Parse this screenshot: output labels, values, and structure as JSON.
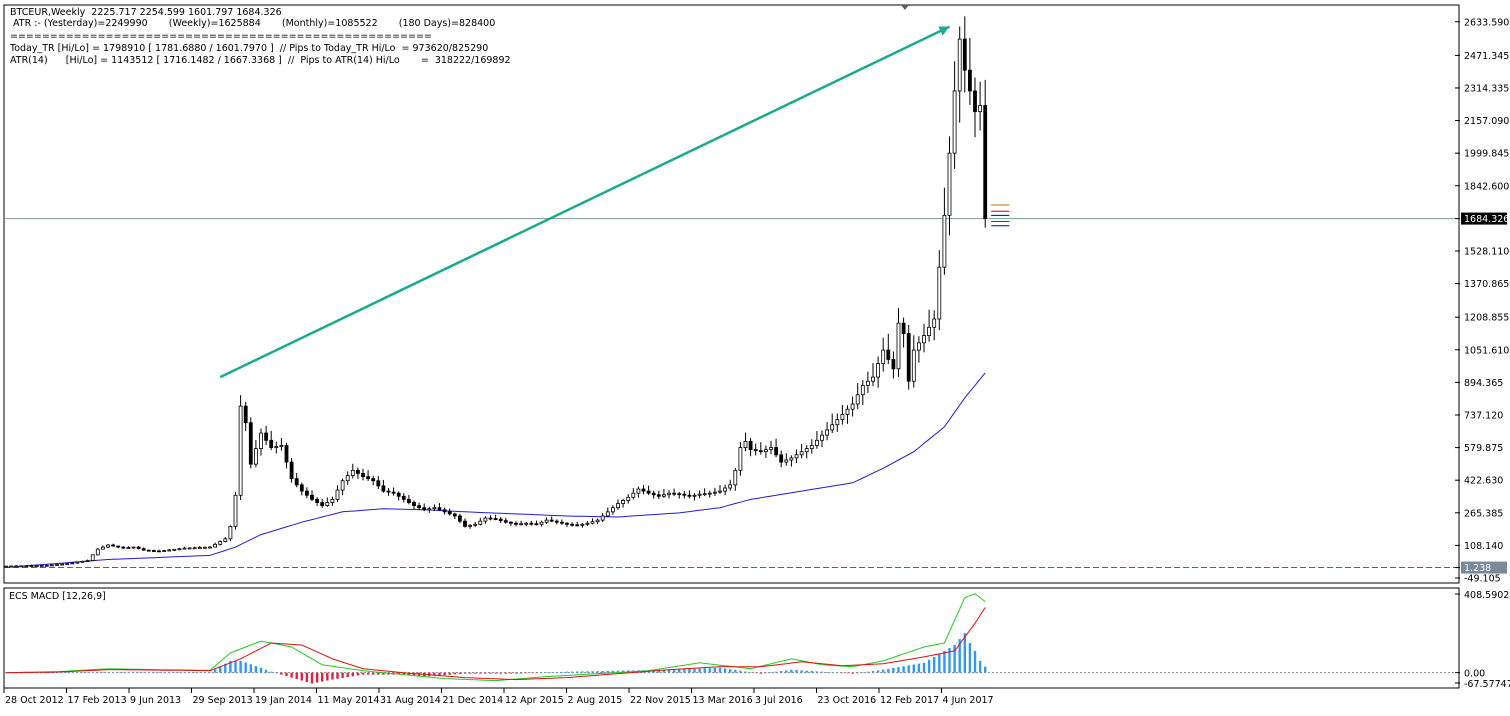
{
  "header": {
    "line1": "BTCEUR,Weekly  2225.717 2254.599 1601.797 1684.326",
    "line2": " ATR :- (Yesterday)=2249990       (Weekly)=1625884       (Monthly)=1085522       (180 Days)=828400",
    "line3": "=====================================================",
    "line4": "Today_TR [Hi/Lo] = 1798910 [ 1781.6880 / 1601.7970 ]  // Pips to Today_TR Hi/Lo  = 973620/825290",
    "line5": "ATR(14)      [Hi/Lo] = 1143512 [ 1716.1482 / 1667.3368 ]  //  Pips to ATR(14) Hi/Lo       =  318222/169892"
  },
  "indicator_label": "ECS MACD [12,26,9]",
  "colors": {
    "background": "#ffffff",
    "candle": "#000000",
    "ma_line": "#1f1fd0",
    "trend_arrow": "#1aaa8c",
    "macd_line": "#22cc22",
    "signal_line": "#dd1111",
    "hist_pos": "#3399ee",
    "hist_neg": "#dd2244",
    "current_price_line": "#7a9a9a"
  },
  "chart_data": {
    "type": "candlestick",
    "title": "BTCEUR,Weekly",
    "ylim": [
      -49.105,
      2700
    ],
    "y_ticks": [
      "2633.590",
      "2471.345",
      "2314.335",
      "2157.090",
      "1999.845",
      "1842.600",
      "1684.326",
      "1528.110",
      "1370.865",
      "1208.855",
      "1051.610",
      "894.365",
      "737.120",
      "579.875",
      "422.630",
      "265.385",
      "108.140",
      "1.238",
      "-49.105"
    ],
    "x_ticks": [
      "28 Oct 2012",
      "17 Feb 2013",
      "9 Jun 2013",
      "29 Sep 2013",
      "19 Jan 2014",
      "11 May 2014",
      "31 Aug 2014",
      "21 Dec 2014",
      "12 Apr 2015",
      "2 Aug 2015",
      "22 Nov 2015",
      "13 Mar 2016",
      "3 Jul 2016",
      "23 Oct 2016",
      "12 Feb 2017",
      "4 Jun 2017"
    ],
    "current_price": 1684.326,
    "zero_line": 1.238,
    "weekly_close_anchors": [
      [
        0,
        8
      ],
      [
        8,
        12
      ],
      [
        12,
        20
      ],
      [
        16,
        35
      ],
      [
        18,
        90
      ],
      [
        20,
        110
      ],
      [
        23,
        95
      ],
      [
        25,
        100
      ],
      [
        27,
        85
      ],
      [
        30,
        80
      ],
      [
        35,
        95
      ],
      [
        40,
        100
      ],
      [
        43,
        140
      ],
      [
        44,
        200
      ],
      [
        45,
        350
      ],
      [
        46,
        780
      ],
      [
        47,
        700
      ],
      [
        48,
        500
      ],
      [
        50,
        650
      ],
      [
        52,
        580
      ],
      [
        54,
        590
      ],
      [
        56,
        430
      ],
      [
        58,
        370
      ],
      [
        60,
        330
      ],
      [
        62,
        300
      ],
      [
        64,
        330
      ],
      [
        66,
        420
      ],
      [
        68,
        470
      ],
      [
        70,
        440
      ],
      [
        72,
        420
      ],
      [
        74,
        370
      ],
      [
        76,
        360
      ],
      [
        78,
        330
      ],
      [
        80,
        300
      ],
      [
        82,
        280
      ],
      [
        84,
        290
      ],
      [
        86,
        270
      ],
      [
        88,
        250
      ],
      [
        90,
        200
      ],
      [
        92,
        210
      ],
      [
        94,
        240
      ],
      [
        96,
        235
      ],
      [
        98,
        220
      ],
      [
        100,
        210
      ],
      [
        102,
        215
      ],
      [
        104,
        210
      ],
      [
        106,
        230
      ],
      [
        108,
        220
      ],
      [
        110,
        210
      ],
      [
        112,
        205
      ],
      [
        114,
        215
      ],
      [
        116,
        230
      ],
      [
        118,
        270
      ],
      [
        120,
        310
      ],
      [
        122,
        340
      ],
      [
        124,
        380
      ],
      [
        126,
        360
      ],
      [
        128,
        345
      ],
      [
        130,
        360
      ],
      [
        132,
        355
      ],
      [
        134,
        345
      ],
      [
        136,
        355
      ],
      [
        138,
        360
      ],
      [
        140,
        370
      ],
      [
        142,
        400
      ],
      [
        143,
        470
      ],
      [
        144,
        580
      ],
      [
        145,
        610
      ],
      [
        146,
        570
      ],
      [
        148,
        560
      ],
      [
        150,
        580
      ],
      [
        152,
        510
      ],
      [
        154,
        530
      ],
      [
        156,
        560
      ],
      [
        158,
        590
      ],
      [
        160,
        640
      ],
      [
        162,
        690
      ],
      [
        164,
        740
      ],
      [
        166,
        790
      ],
      [
        168,
        880
      ],
      [
        170,
        920
      ],
      [
        172,
        1050
      ],
      [
        174,
        960
      ],
      [
        175,
        1180
      ],
      [
        176,
        1130
      ],
      [
        177,
        900
      ],
      [
        178,
        1050
      ],
      [
        180,
        1120
      ],
      [
        182,
        1200
      ],
      [
        183,
        1450
      ],
      [
        184,
        1700
      ],
      [
        185,
        2000
      ],
      [
        186,
        2300
      ],
      [
        187,
        2550
      ],
      [
        188,
        2400
      ],
      [
        189,
        2300
      ],
      [
        190,
        2200
      ],
      [
        191,
        2230
      ],
      [
        192,
        1684
      ]
    ],
    "ma_anchors": [
      [
        0,
        2
      ],
      [
        20,
        40
      ],
      [
        40,
        60
      ],
      [
        45,
        100
      ],
      [
        50,
        160
      ],
      [
        58,
        220
      ],
      [
        66,
        270
      ],
      [
        74,
        285
      ],
      [
        82,
        280
      ],
      [
        90,
        270
      ],
      [
        100,
        260
      ],
      [
        110,
        250
      ],
      [
        120,
        245
      ],
      [
        124,
        252
      ],
      [
        132,
        265
      ],
      [
        140,
        290
      ],
      [
        146,
        330
      ],
      [
        156,
        370
      ],
      [
        166,
        410
      ],
      [
        172,
        480
      ],
      [
        178,
        560
      ],
      [
        184,
        680
      ],
      [
        188,
        820
      ],
      [
        192,
        940
      ]
    ],
    "trend_arrow": {
      "from": [
        42,
        920
      ],
      "to": [
        185,
        2610
      ]
    },
    "macd_panel": {
      "label": "ECS MACD [12,26,9]",
      "ylim": [
        -67.57747,
        408.59026
      ],
      "y_ticks": [
        "408.59026",
        "0.00",
        "-67.57747"
      ],
      "macd_anchors": [
        [
          0,
          0
        ],
        [
          10,
          5
        ],
        [
          20,
          20
        ],
        [
          30,
          15
        ],
        [
          40,
          12
        ],
        [
          44,
          100
        ],
        [
          50,
          160
        ],
        [
          56,
          130
        ],
        [
          62,
          40
        ],
        [
          70,
          10
        ],
        [
          78,
          -10
        ],
        [
          86,
          -30
        ],
        [
          96,
          -40
        ],
        [
          106,
          -20
        ],
        [
          116,
          -5
        ],
        [
          126,
          10
        ],
        [
          136,
          50
        ],
        [
          146,
          20
        ],
        [
          154,
          70
        ],
        [
          160,
          40
        ],
        [
          166,
          30
        ],
        [
          172,
          60
        ],
        [
          180,
          130
        ],
        [
          184,
          150
        ],
        [
          188,
          380
        ],
        [
          190,
          400
        ],
        [
          192,
          360
        ]
      ],
      "signal_anchors": [
        [
          0,
          0
        ],
        [
          10,
          3
        ],
        [
          20,
          15
        ],
        [
          30,
          13
        ],
        [
          40,
          10
        ],
        [
          46,
          70
        ],
        [
          52,
          150
        ],
        [
          58,
          140
        ],
        [
          64,
          70
        ],
        [
          70,
          20
        ],
        [
          80,
          -5
        ],
        [
          90,
          -25
        ],
        [
          100,
          -35
        ],
        [
          110,
          -25
        ],
        [
          120,
          -5
        ],
        [
          130,
          15
        ],
        [
          140,
          30
        ],
        [
          148,
          30
        ],
        [
          156,
          55
        ],
        [
          164,
          35
        ],
        [
          172,
          45
        ],
        [
          180,
          80
        ],
        [
          186,
          110
        ],
        [
          190,
          250
        ],
        [
          192,
          330
        ]
      ],
      "hist_anchors": [
        [
          0,
          0
        ],
        [
          40,
          2
        ],
        [
          44,
          60
        ],
        [
          46,
          60
        ],
        [
          50,
          25
        ],
        [
          52,
          5
        ],
        [
          56,
          -25
        ],
        [
          60,
          -55
        ],
        [
          64,
          -35
        ],
        [
          70,
          -10
        ],
        [
          78,
          -10
        ],
        [
          82,
          -20
        ],
        [
          90,
          -5
        ],
        [
          100,
          -5
        ],
        [
          110,
          5
        ],
        [
          120,
          10
        ],
        [
          130,
          15
        ],
        [
          140,
          25
        ],
        [
          148,
          -5
        ],
        [
          154,
          15
        ],
        [
          160,
          5
        ],
        [
          166,
          -5
        ],
        [
          172,
          15
        ],
        [
          180,
          50
        ],
        [
          186,
          140
        ],
        [
          188,
          200
        ],
        [
          189,
          150
        ],
        [
          190,
          110
        ],
        [
          191,
          60
        ],
        [
          192,
          30
        ]
      ]
    }
  }
}
